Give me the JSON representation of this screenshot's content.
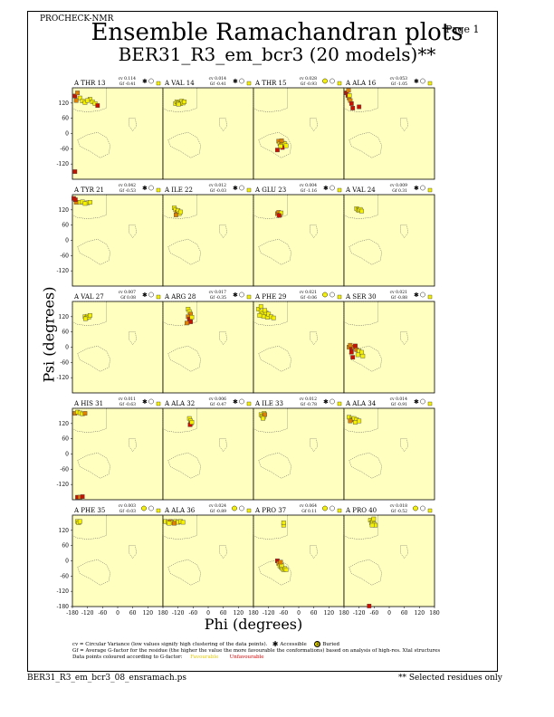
{
  "header": {
    "brand": "PROCHECK-NMR",
    "page": "Page  1",
    "title": "Ensemble Ramachandran plots",
    "subtitle": "BER31_R3_em_bcr3 (20 models)**"
  },
  "axes": {
    "xlabel": "Phi (degrees)",
    "ylabel": "Psi (degrees)",
    "xticks": [
      "-180",
      "-120",
      "-60",
      "0",
      "60",
      "120",
      "180"
    ],
    "yticks": [
      "120",
      "60",
      "0",
      "-60",
      "-120"
    ],
    "bottom_yticks": [
      "120",
      "60",
      "0",
      "-60",
      "-120",
      "-180"
    ]
  },
  "legend": {
    "cv_text": "cv = Circular Variance (low values signify high clustering of the data points).",
    "accessible": "Accessible",
    "buried": "Buried",
    "gf_text": "Gf = Average G-factor for the residue (the higher the value the more favourable the conformations) based on analysis of high-res. Xtal structures",
    "colour_text": "Data points coloured according to G-factor:",
    "favourable": "Favourable",
    "unfavourable": "Unfavourable"
  },
  "footer": {
    "left": "BER31_R3_em_bcr3_08_ensramach.ps",
    "right": "** Selected residues only"
  },
  "colors": {
    "panel_bg": "#ffffc0",
    "favourable": "#f5f000",
    "unfavourable": "#cc1000",
    "mid": "#e08000"
  },
  "chart_data": {
    "type": "scatter",
    "xlim": [
      -180,
      180
    ],
    "ylim": [
      -180,
      180
    ],
    "panels": [
      {
        "label": "A THR 13",
        "cv": "cv 0.114",
        "gf": "Gf -0.41",
        "access": "acc",
        "points": [
          [
            -170,
            148,
            "u"
          ],
          [
            -160,
            160,
            "m"
          ],
          [
            -150,
            140,
            "f"
          ],
          [
            -140,
            128,
            "f"
          ],
          [
            -130,
            122,
            "f"
          ],
          [
            -110,
            135,
            "f"
          ],
          [
            -100,
            125,
            "f"
          ],
          [
            -90,
            118,
            "f"
          ],
          [
            -80,
            110,
            "u"
          ],
          [
            -165,
            130,
            "m"
          ],
          [
            -170,
            -150,
            "u"
          ],
          [
            -120,
            130,
            "f"
          ]
        ]
      },
      {
        "label": "A VAL 14",
        "cv": "cv 0.014",
        "gf": "Gf -0.41",
        "access": "acc",
        "points": [
          [
            -130,
            118,
            "f"
          ],
          [
            -125,
            125,
            "f"
          ],
          [
            -120,
            120,
            "f"
          ],
          [
            -115,
            122,
            "f"
          ],
          [
            -110,
            118,
            "f"
          ],
          [
            -105,
            128,
            "f"
          ],
          [
            -100,
            120,
            "f"
          ],
          [
            -95,
            125,
            "f"
          ],
          [
            -118,
            115,
            "f"
          ]
        ]
      },
      {
        "label": "A THR 15",
        "cv": "cv 0.028",
        "gf": "Gf -0.93",
        "access": "bur",
        "points": [
          [
            -80,
            -30,
            "m"
          ],
          [
            -75,
            -40,
            "f"
          ],
          [
            -70,
            -45,
            "m"
          ],
          [
            -65,
            -55,
            "u"
          ],
          [
            -60,
            -38,
            "f"
          ],
          [
            -72,
            -50,
            "f"
          ],
          [
            -55,
            -40,
            "f"
          ],
          [
            -85,
            -65,
            "u"
          ],
          [
            -50,
            -48,
            "f"
          ],
          [
            -68,
            -28,
            "m"
          ]
        ]
      },
      {
        "label": "A ALA 16",
        "cv": "cv 0.053",
        "gf": "Gf -1.05",
        "access": "acc",
        "points": [
          [
            -170,
            160,
            "u"
          ],
          [
            -165,
            150,
            "u"
          ],
          [
            -160,
            140,
            "m"
          ],
          [
            -155,
            130,
            "m"
          ],
          [
            -150,
            118,
            "u"
          ],
          [
            -145,
            100,
            "u"
          ],
          [
            -120,
            105,
            "u"
          ],
          [
            -158,
            150,
            "f"
          ],
          [
            -162,
            170,
            "m"
          ]
        ]
      },
      {
        "label": "A TYR 21",
        "cv": "cv 0.042",
        "gf": "Gf -0.53",
        "access": "acc",
        "points": [
          [
            -175,
            165,
            "u"
          ],
          [
            -165,
            150,
            "m"
          ],
          [
            -150,
            150,
            "f"
          ],
          [
            -140,
            152,
            "f"
          ],
          [
            -120,
            148,
            "f"
          ],
          [
            -110,
            150,
            "f"
          ],
          [
            -130,
            145,
            "f"
          ],
          [
            -168,
            160,
            "u"
          ]
        ]
      },
      {
        "label": "A ILE 22",
        "cv": "cv 0.012",
        "gf": "Gf -0.03",
        "access": "acc",
        "points": [
          [
            -135,
            128,
            "f"
          ],
          [
            -130,
            120,
            "f"
          ],
          [
            -125,
            110,
            "m"
          ],
          [
            -120,
            118,
            "f"
          ],
          [
            -115,
            105,
            "f"
          ],
          [
            -128,
            100,
            "m"
          ],
          [
            -110,
            112,
            "f"
          ]
        ]
      },
      {
        "label": "A GLU 23",
        "cv": "cv 0.004",
        "gf": "Gf -1.16",
        "access": "acc",
        "points": [
          [
            -85,
            105,
            "m"
          ],
          [
            -80,
            110,
            "m"
          ],
          [
            -75,
            100,
            "m"
          ],
          [
            -70,
            108,
            "f"
          ],
          [
            -78,
            98,
            "u"
          ]
        ]
      },
      {
        "label": "A VAL 24",
        "cv": "cv 0.009",
        "gf": "Gf 0.31",
        "access": "acc",
        "points": [
          [
            -130,
            125,
            "f"
          ],
          [
            -125,
            120,
            "f"
          ],
          [
            -120,
            118,
            "f"
          ],
          [
            -115,
            122,
            "f"
          ],
          [
            -110,
            115,
            "f"
          ]
        ]
      },
      {
        "label": "A VAL 27",
        "cv": "cv 0.007",
        "gf": "Gf 0.08",
        "access": "acc",
        "points": [
          [
            -130,
            120,
            "f"
          ],
          [
            -125,
            115,
            "f"
          ],
          [
            -120,
            122,
            "f"
          ],
          [
            -115,
            118,
            "f"
          ],
          [
            -110,
            125,
            "f"
          ],
          [
            -128,
            112,
            "f"
          ]
        ]
      },
      {
        "label": "A ARG 28",
        "cv": "cv 0.017",
        "gf": "Gf -0.35",
        "access": "acc",
        "points": [
          [
            -80,
            150,
            "f"
          ],
          [
            -75,
            140,
            "f"
          ],
          [
            -70,
            130,
            "m"
          ],
          [
            -80,
            120,
            "m"
          ],
          [
            -75,
            110,
            "u"
          ],
          [
            -70,
            100,
            "u"
          ],
          [
            -85,
            95,
            "m"
          ],
          [
            -65,
            118,
            "f"
          ]
        ]
      },
      {
        "label": "A PHE 29",
        "cv": "cv 0.021",
        "gf": "Gf -0.06",
        "access": "bur",
        "points": [
          [
            -160,
            150,
            "f"
          ],
          [
            -150,
            140,
            "f"
          ],
          [
            -145,
            130,
            "f"
          ],
          [
            -140,
            122,
            "f"
          ],
          [
            -130,
            135,
            "f"
          ],
          [
            -125,
            118,
            "f"
          ],
          [
            -120,
            130,
            "f"
          ],
          [
            -110,
            120,
            "f"
          ],
          [
            -100,
            115,
            "f"
          ],
          [
            -150,
            160,
            "f"
          ],
          [
            -135,
            145,
            "f"
          ],
          [
            -155,
            125,
            "f"
          ]
        ]
      },
      {
        "label": "A SER 30",
        "cv": "cv 0.021",
        "gf": "Gf -0.88",
        "access": "acc",
        "points": [
          [
            -160,
            0,
            "m"
          ],
          [
            -150,
            -5,
            "u"
          ],
          [
            -140,
            0,
            "m"
          ],
          [
            -130,
            -10,
            "m"
          ],
          [
            -120,
            -15,
            "f"
          ],
          [
            -110,
            -20,
            "f"
          ],
          [
            -150,
            -20,
            "u"
          ],
          [
            -145,
            -40,
            "u"
          ],
          [
            -125,
            -30,
            "f"
          ],
          [
            -105,
            -35,
            "f"
          ],
          [
            -135,
            5,
            "u"
          ],
          [
            -155,
            8,
            "m"
          ]
        ]
      },
      {
        "label": "A HIS 31",
        "cv": "cv 0.011",
        "gf": "Gf -0.63",
        "access": "acc",
        "points": [
          [
            -170,
            160,
            "m"
          ],
          [
            -160,
            165,
            "f"
          ],
          [
            -150,
            162,
            "f"
          ],
          [
            -140,
            158,
            "f"
          ],
          [
            -130,
            160,
            "m"
          ],
          [
            -160,
            -170,
            "u"
          ],
          [
            -150,
            -170,
            "m"
          ],
          [
            -140,
            -168,
            "u"
          ]
        ]
      },
      {
        "label": "A ALA 32",
        "cv": "cv 0.006",
        "gf": "Gf -0.47",
        "access": "acc",
        "points": [
          [
            -75,
            140,
            "f"
          ],
          [
            -70,
            130,
            "f"
          ],
          [
            -68,
            120,
            "m"
          ],
          [
            -72,
            115,
            "u"
          ],
          [
            -65,
            125,
            "f"
          ]
        ]
      },
      {
        "label": "A ILE 33",
        "cv": "cv 0.012",
        "gf": "Gf -0.78",
        "access": "acc",
        "points": [
          [
            -150,
            155,
            "f"
          ],
          [
            -145,
            150,
            "f"
          ],
          [
            -140,
            145,
            "f"
          ],
          [
            -138,
            160,
            "f"
          ],
          [
            -135,
            155,
            "m"
          ],
          [
            -142,
            140,
            "f"
          ]
        ]
      },
      {
        "label": "A ALA 34",
        "cv": "cv 0.014",
        "gf": "Gf -0.91",
        "access": "acc",
        "points": [
          [
            -160,
            145,
            "f"
          ],
          [
            -150,
            140,
            "f"
          ],
          [
            -145,
            135,
            "m"
          ],
          [
            -140,
            140,
            "f"
          ],
          [
            -130,
            135,
            "f"
          ],
          [
            -120,
            130,
            "f"
          ],
          [
            -155,
            130,
            "m"
          ],
          [
            -135,
            125,
            "f"
          ]
        ]
      },
      {
        "label": "A PHE 35",
        "cv": "cv 0.003",
        "gf": "Gf -0.03",
        "access": "bur",
        "points": [
          [
            -160,
            155,
            "f"
          ],
          [
            -155,
            150,
            "f"
          ],
          [
            -150,
            155,
            "f"
          ]
        ]
      },
      {
        "label": "A ALA 36",
        "cv": "cv 0.024",
        "gf": "Gf -0.89",
        "access": "bur",
        "points": [
          [
            -170,
            155,
            "f"
          ],
          [
            -160,
            152,
            "f"
          ],
          [
            -150,
            155,
            "m"
          ],
          [
            -140,
            152,
            "f"
          ],
          [
            -130,
            155,
            "f"
          ],
          [
            -120,
            152,
            "f"
          ],
          [
            -110,
            155,
            "f"
          ],
          [
            -100,
            152,
            "f"
          ],
          [
            -155,
            148,
            "f"
          ],
          [
            -135,
            148,
            "m"
          ]
        ]
      },
      {
        "label": "A PRO 37",
        "cv": "cv 0.064",
        "gf": "Gf 0.11",
        "access": "bur",
        "points": [
          [
            -85,
            0,
            "u"
          ],
          [
            -80,
            -10,
            "m"
          ],
          [
            -75,
            -20,
            "f"
          ],
          [
            -70,
            -25,
            "f"
          ],
          [
            -65,
            -30,
            "f"
          ],
          [
            -60,
            -35,
            "f"
          ],
          [
            -55,
            -30,
            "f"
          ],
          [
            -50,
            -35,
            "f"
          ],
          [
            -68,
            -18,
            "f"
          ],
          [
            -60,
            140,
            "f"
          ],
          [
            -60,
            150,
            "f"
          ],
          [
            -72,
            -5,
            "m"
          ]
        ]
      },
      {
        "label": "A PRO 40",
        "cv": "cv 0.018",
        "gf": "Gf -0.52",
        "access": "bur",
        "points": [
          [
            -75,
            160,
            "f"
          ],
          [
            -70,
            150,
            "f"
          ],
          [
            -65,
            155,
            "f"
          ],
          [
            -60,
            145,
            "f"
          ],
          [
            -55,
            140,
            "f"
          ],
          [
            -68,
            140,
            "f"
          ],
          [
            -62,
            165,
            "f"
          ],
          [
            -80,
            -178,
            "u"
          ]
        ]
      }
    ]
  }
}
